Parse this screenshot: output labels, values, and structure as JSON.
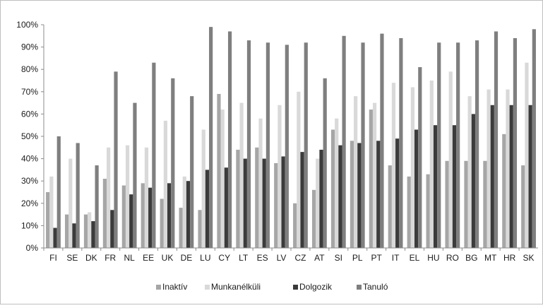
{
  "chart_data": {
    "type": "bar",
    "categories": [
      "FI",
      "SE",
      "DK",
      "FR",
      "NL",
      "EE",
      "UK",
      "DE",
      "LU",
      "CY",
      "LT",
      "ES",
      "LV",
      "CZ",
      "AT",
      "SI",
      "PL",
      "PT",
      "IT",
      "EL",
      "HU",
      "RO",
      "BG",
      "MT",
      "HR",
      "SK"
    ],
    "y_ticks": [
      "0%",
      "10%",
      "20%",
      "30%",
      "40%",
      "50%",
      "60%",
      "70%",
      "80%",
      "90%",
      "100%"
    ],
    "ylim": [
      0,
      100
    ],
    "grid": false,
    "legend_position": "bottom",
    "series": [
      {
        "name": "Inaktív",
        "color": "#a6a6a6",
        "values": [
          25,
          15,
          15,
          31,
          28,
          29,
          22,
          18,
          17,
          null,
          44,
          45,
          38,
          20,
          26,
          53,
          48,
          62,
          37,
          32,
          33,
          39,
          39,
          39,
          51,
          37
        ]
      },
      {
        "name": "Munkanélküli",
        "color": "#d9d9d9",
        "values": [
          32,
          40,
          16,
          45,
          46,
          45,
          57,
          32,
          53,
          62,
          65,
          58,
          64,
          70,
          40,
          58,
          68,
          65,
          74,
          72,
          75,
          79,
          68,
          71,
          71,
          83
        ]
      },
      {
        "name": "Dolgozik",
        "color": "#3b3b3b",
        "values": [
          9,
          11,
          12,
          17,
          24,
          27,
          29,
          30,
          35,
          36,
          40,
          40,
          41,
          43,
          44,
          46,
          47,
          48,
          49,
          53,
          55,
          55,
          60,
          64,
          64,
          64
        ]
      },
      {
        "name": "Tanuló",
        "color": "#7f7f7f",
        "values": [
          50,
          47,
          37,
          79,
          65,
          83,
          76,
          68,
          99,
          97,
          93,
          92,
          91,
          92,
          76,
          95,
          92,
          96,
          94,
          81,
          92,
          92,
          93,
          97,
          94,
          98
        ]
      }
    ],
    "extra_bar": {
      "category": "CY",
      "value": 69,
      "color": "#a6a6a6"
    }
  }
}
